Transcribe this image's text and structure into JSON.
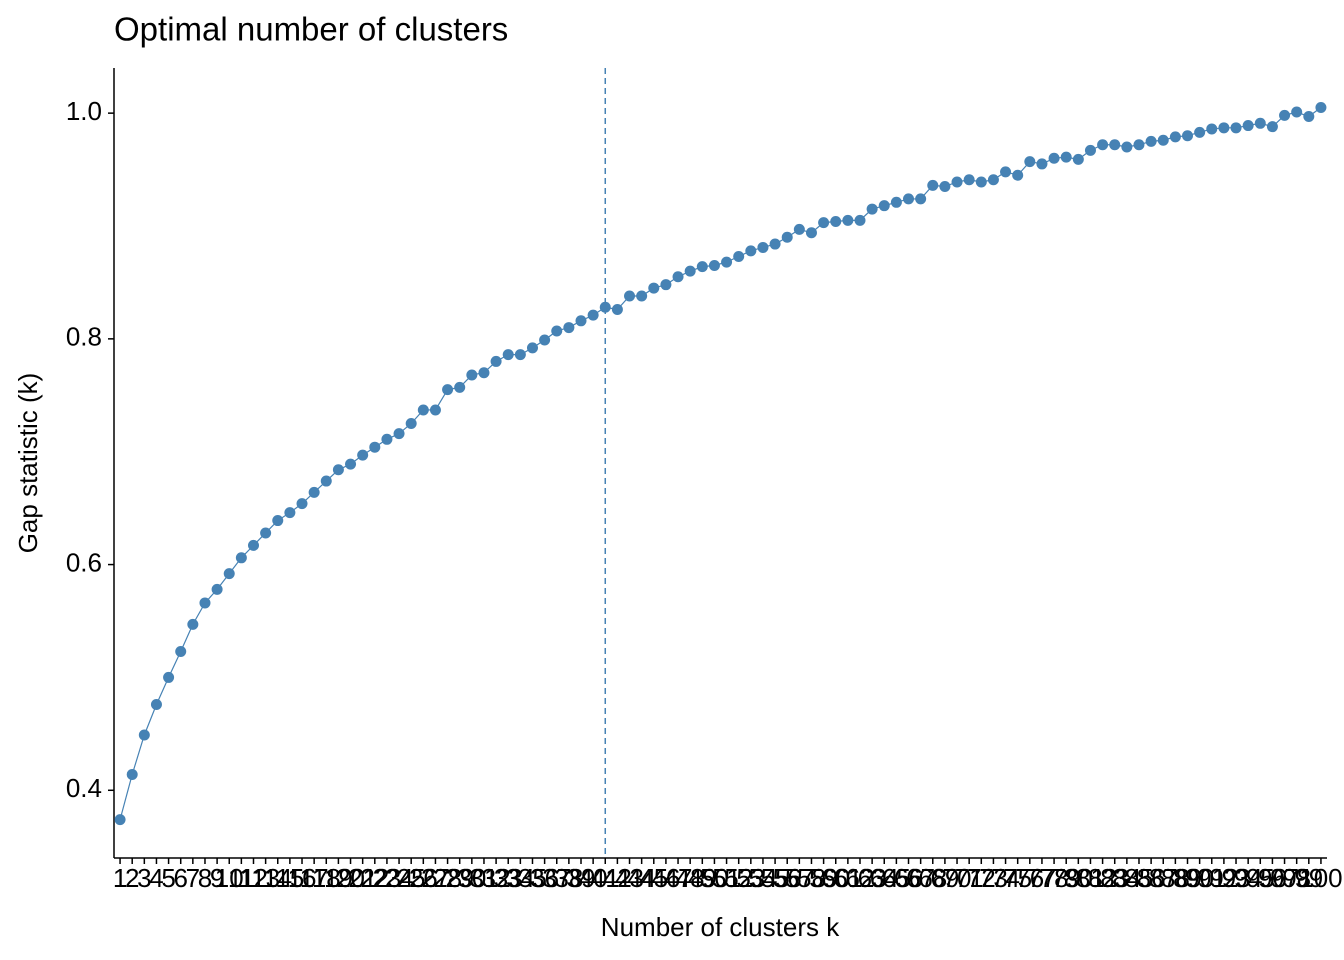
{
  "chart_data": {
    "type": "line",
    "title": "Optimal number of clusters",
    "xlabel": "Number of clusters k",
    "ylabel": "Gap statistic (k)",
    "x": [
      1,
      2,
      3,
      4,
      5,
      6,
      7,
      8,
      9,
      10,
      11,
      12,
      13,
      14,
      15,
      16,
      17,
      18,
      19,
      20,
      21,
      22,
      23,
      24,
      25,
      26,
      27,
      28,
      29,
      30,
      31,
      32,
      33,
      34,
      35,
      36,
      37,
      38,
      39,
      40,
      41,
      42,
      43,
      44,
      45,
      46,
      47,
      48,
      49,
      50,
      51,
      52,
      53,
      54,
      55,
      56,
      57,
      58,
      59,
      60,
      61,
      62,
      63,
      64,
      65,
      66,
      67,
      68,
      69,
      70,
      71,
      72,
      73,
      74,
      75,
      76,
      77,
      78,
      79,
      80,
      81,
      82,
      83,
      84,
      85,
      86,
      87,
      88,
      89,
      90,
      91,
      92,
      93,
      94,
      95,
      96,
      97,
      98,
      99,
      100
    ],
    "series": [
      {
        "name": "gap",
        "color": "#4682b4",
        "values": [
          0.374,
          0.414,
          0.449,
          0.476,
          0.5,
          0.523,
          0.547,
          0.566,
          0.578,
          0.592,
          0.606,
          0.617,
          0.628,
          0.639,
          0.646,
          0.654,
          0.664,
          0.674,
          0.684,
          0.689,
          0.697,
          0.704,
          0.711,
          0.716,
          0.725,
          0.737,
          0.737,
          0.755,
          0.757,
          0.768,
          0.77,
          0.78,
          0.786,
          0.786,
          0.792,
          0.799,
          0.807,
          0.81,
          0.816,
          0.821,
          0.828,
          0.826,
          0.838,
          0.838,
          0.845,
          0.848,
          0.855,
          0.86,
          0.864,
          0.865,
          0.868,
          0.873,
          0.878,
          0.881,
          0.884,
          0.89,
          0.897,
          0.894,
          0.903,
          0.904,
          0.905,
          0.905,
          0.915,
          0.918,
          0.921,
          0.924,
          0.924,
          0.936,
          0.935,
          0.939,
          0.941,
          0.939,
          0.941,
          0.948,
          0.945,
          0.957,
          0.955,
          0.96,
          0.961,
          0.959,
          0.967,
          0.972,
          0.972,
          0.97,
          0.972,
          0.975,
          0.976,
          0.979,
          0.98,
          0.983,
          0.986,
          0.987,
          0.987,
          0.989,
          0.991,
          0.988,
          0.998,
          1.001,
          0.997,
          1.005
        ]
      }
    ],
    "vline": 41,
    "xlim": [
      0.5,
      100.5
    ],
    "xticks": [
      1,
      2,
      3,
      4,
      5,
      6,
      7,
      8,
      9,
      10,
      11,
      12,
      13,
      14,
      15,
      16,
      17,
      18,
      19,
      20,
      21,
      22,
      23,
      24,
      25,
      26,
      27,
      28,
      29,
      30,
      31,
      32,
      33,
      34,
      35,
      36,
      37,
      38,
      39,
      40,
      41,
      42,
      43,
      44,
      45,
      46,
      47,
      48,
      49,
      50,
      51,
      52,
      53,
      54,
      55,
      56,
      57,
      58,
      59,
      60,
      61,
      62,
      63,
      64,
      65,
      66,
      67,
      68,
      69,
      70,
      71,
      72,
      73,
      74,
      75,
      76,
      77,
      78,
      79,
      80,
      81,
      82,
      83,
      84,
      85,
      86,
      87,
      88,
      89,
      90,
      91,
      92,
      93,
      94,
      95,
      96,
      97,
      98,
      99,
      100
    ],
    "ylim": [
      0.34,
      1.04
    ],
    "yticks": [
      {
        "value": 0.4,
        "label": "0.4"
      },
      {
        "value": 0.6,
        "label": "0.6"
      },
      {
        "value": 0.8,
        "label": "0.8"
      },
      {
        "value": 1.0,
        "label": "1.0"
      }
    ],
    "grid": false
  }
}
